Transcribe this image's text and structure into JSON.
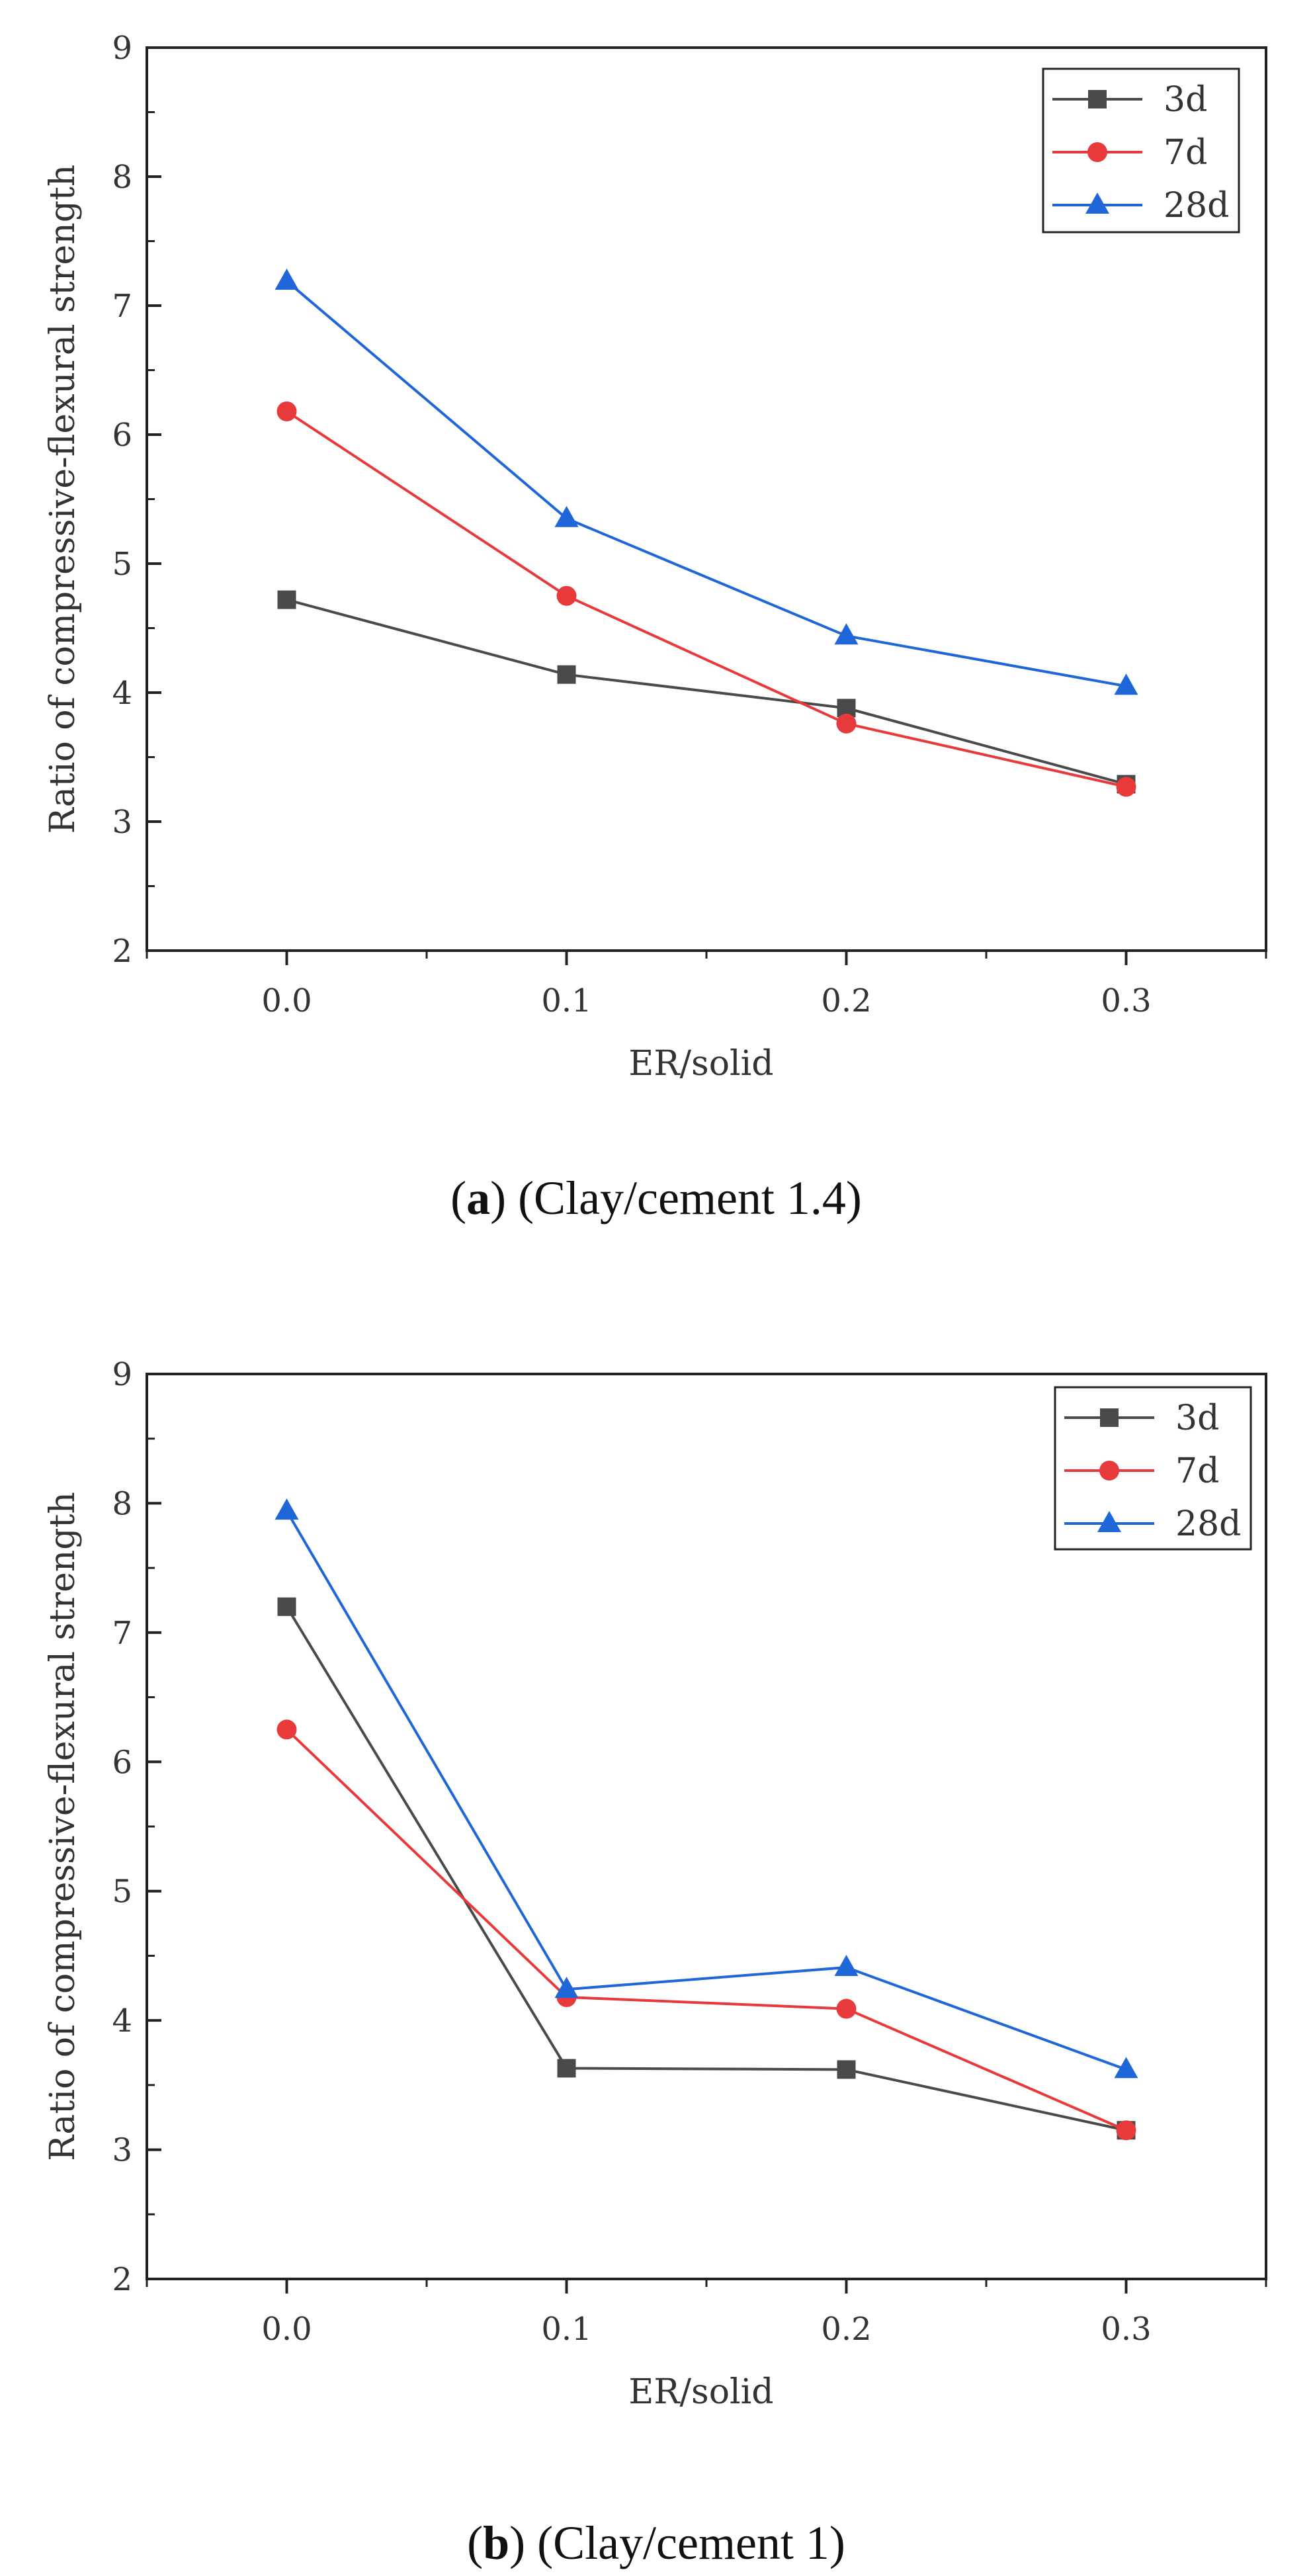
{
  "chart_data": [
    {
      "type": "line",
      "panel": "a",
      "caption": {
        "open": "(",
        "letter": "a",
        "rest": ") (Clay/cement 1.4)"
      },
      "xlabel": "ER/solid",
      "ylabel": "Ratio of compressive-flexural strength",
      "x": [
        0.0,
        0.1,
        0.2,
        0.3
      ],
      "x_tick_labels": [
        "0.0",
        "0.1",
        "0.2",
        "0.3"
      ],
      "xlim": [
        -0.05,
        0.35
      ],
      "ylim": [
        2,
        9
      ],
      "y_ticks": [
        2,
        3,
        4,
        5,
        6,
        7,
        8,
        9
      ],
      "legend_position": "top-right",
      "series": [
        {
          "name": "3d",
          "marker": "square",
          "color": "#4a4a4a",
          "values": [
            4.72,
            4.14,
            3.88,
            3.29
          ]
        },
        {
          "name": "7d",
          "marker": "circle",
          "color": "#e8393b",
          "values": [
            6.18,
            4.75,
            3.76,
            3.27
          ]
        },
        {
          "name": "28d",
          "marker": "triangle",
          "color": "#1f66d9",
          "values": [
            7.19,
            5.35,
            4.44,
            4.05
          ]
        }
      ]
    },
    {
      "type": "line",
      "panel": "b",
      "caption": {
        "open": "(",
        "letter": "b",
        "rest": ") (Clay/cement 1)"
      },
      "xlabel": "ER/solid",
      "ylabel": "Ratio of compressive-flexural strength",
      "x": [
        0.0,
        0.1,
        0.2,
        0.3
      ],
      "x_tick_labels": [
        "0.0",
        "0.1",
        "0.2",
        "0.3"
      ],
      "xlim": [
        -0.05,
        0.35
      ],
      "ylim": [
        2,
        9
      ],
      "y_ticks": [
        2,
        3,
        4,
        5,
        6,
        7,
        8,
        9
      ],
      "legend_position": "top-right",
      "series": [
        {
          "name": "3d",
          "marker": "square",
          "color": "#4a4a4a",
          "values": [
            7.2,
            3.63,
            3.62,
            3.15
          ]
        },
        {
          "name": "7d",
          "marker": "circle",
          "color": "#e8393b",
          "values": [
            6.25,
            4.18,
            4.09,
            3.15
          ]
        },
        {
          "name": "28d",
          "marker": "triangle",
          "color": "#1f66d9",
          "values": [
            7.94,
            4.24,
            4.41,
            3.62
          ]
        }
      ]
    }
  ]
}
